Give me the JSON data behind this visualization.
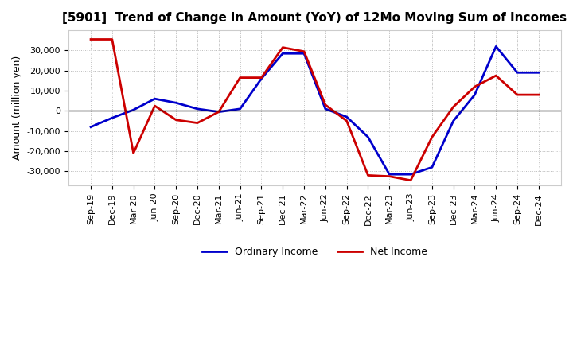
{
  "title": "[5901]  Trend of Change in Amount (YoY) of 12Mo Moving Sum of Incomes",
  "ylabel": "Amount (million yen)",
  "background_color": "#ffffff",
  "grid_color": "#bbbbbb",
  "x_labels": [
    "Sep-19",
    "Dec-19",
    "Mar-20",
    "Jun-20",
    "Sep-20",
    "Dec-20",
    "Mar-21",
    "Jun-21",
    "Sep-21",
    "Dec-21",
    "Mar-22",
    "Jun-22",
    "Sep-22",
    "Dec-22",
    "Mar-23",
    "Jun-23",
    "Sep-23",
    "Dec-23",
    "Mar-24",
    "Jun-24",
    "Sep-24",
    "Dec-24"
  ],
  "ordinary_income": [
    -8000,
    -3500,
    500,
    6000,
    4000,
    1000,
    -500,
    1000,
    16000,
    28500,
    28500,
    1000,
    -3000,
    -13000,
    -31500,
    -31500,
    -28000,
    -5000,
    8000,
    32000,
    19000,
    19000
  ],
  "net_income": [
    35500,
    35500,
    -21000,
    2500,
    -4500,
    -6000,
    -500,
    16500,
    16500,
    31500,
    29500,
    3000,
    -5000,
    -32000,
    -32500,
    -34500,
    -13000,
    2000,
    12000,
    17500,
    8000,
    8000
  ],
  "ordinary_color": "#0000cc",
  "net_color": "#cc0000",
  "line_width": 2.0,
  "ylim": [
    -37000,
    40000
  ],
  "yticks": [
    -30000,
    -20000,
    -10000,
    0,
    10000,
    20000,
    30000
  ],
  "legend_labels": [
    "Ordinary Income",
    "Net Income"
  ]
}
